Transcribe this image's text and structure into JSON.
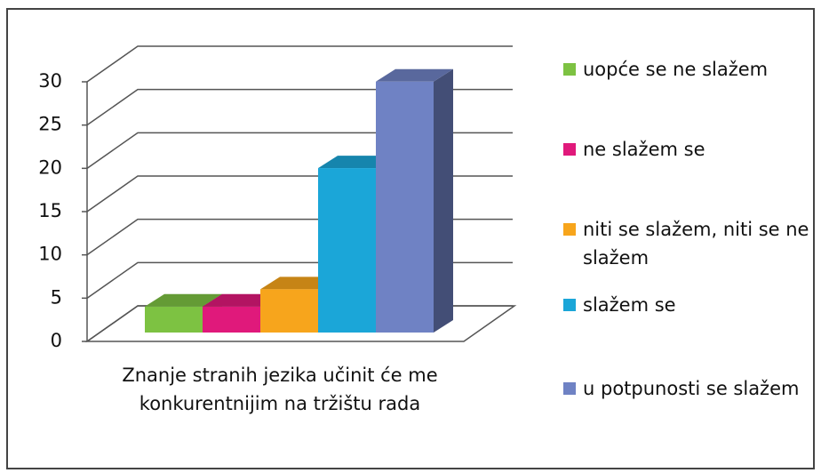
{
  "chart_data": {
    "type": "bar3d",
    "categories": [
      "Znanje stranih jezika učinit će me konkurentnijim na tržištu rada"
    ],
    "series": [
      {
        "name": "uopće se ne slažem",
        "color": "#7dc242",
        "values": [
          3
        ]
      },
      {
        "name": "ne slažem se",
        "color": "#e0197b",
        "values": [
          3
        ]
      },
      {
        "name": "niti se slažem, niti se ne slažem",
        "color": "#f7a51c",
        "values": [
          5
        ]
      },
      {
        "name": "slažem se",
        "color": "#1ba6d8",
        "values": [
          19
        ]
      },
      {
        "name": "u potpunosti se slažem",
        "color": "#6f82c4",
        "values": [
          29
        ]
      }
    ],
    "ylim": [
      0,
      30
    ],
    "yticks": [
      0,
      5,
      10,
      15,
      20,
      25,
      30
    ],
    "grid": true,
    "legend": "right"
  }
}
